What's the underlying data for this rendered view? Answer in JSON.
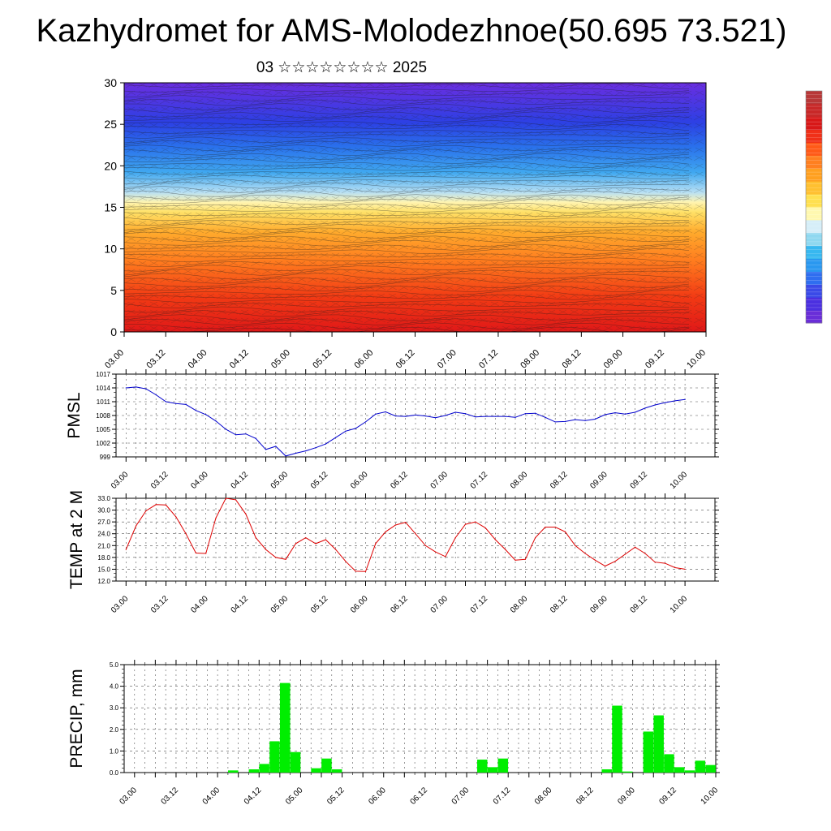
{
  "title": "Kazhydromet for AMS-Molodezhnoe(50.695 73.521)",
  "subtitle": "03 ☆☆☆☆☆☆☆☆ 2025",
  "time_labels": [
    "03.00",
    "03.12",
    "04.00",
    "04.12",
    "05.00",
    "05.12",
    "06.00",
    "06.12",
    "07.00",
    "07.12",
    "08.00",
    "08.12",
    "09.00",
    "09.12",
    "10.00"
  ],
  "colorbar": {
    "colors": [
      "#6a2ed8",
      "#4b30e0",
      "#3a4ae8",
      "#2f6ef0",
      "#2a98f0",
      "#38b8f0",
      "#8fd8f0",
      "#d6eef8",
      "#fff8b0",
      "#ffe050",
      "#ffc030",
      "#ffa020",
      "#ff8020",
      "#ff5a18",
      "#f03018",
      "#d81818",
      "#c82828",
      "#b83838"
    ]
  },
  "chart_data": [
    {
      "type": "heatmap",
      "name": "cross-section",
      "ylim": [
        0,
        30
      ],
      "yticks": [
        0,
        5,
        10,
        15,
        20,
        25,
        30
      ],
      "xlim": [
        0,
        14
      ],
      "description_bands": [
        {
          "y0": 0,
          "y1": 8,
          "color": "#e82818"
        },
        {
          "y0": 8,
          "y1": 12,
          "color": "#ff8a20"
        },
        {
          "y0": 12,
          "y1": 16,
          "color": "#ffd040"
        },
        {
          "y0": 16,
          "y1": 20,
          "color": "#5ab0f0"
        },
        {
          "y0": 20,
          "y1": 25,
          "color": "#2c62e8"
        },
        {
          "y0": 25,
          "y1": 30,
          "color": "#5a30dc"
        }
      ]
    },
    {
      "type": "line",
      "ylabel": "PMSL",
      "ylim": [
        999,
        1017
      ],
      "yticks": [
        999,
        1002,
        1005,
        1008,
        1011,
        1014,
        1017
      ],
      "xlim": [
        -0.25,
        14.75
      ],
      "color": "#0000cc",
      "x": [
        0,
        0.25,
        0.5,
        0.75,
        1,
        1.25,
        1.5,
        1.75,
        2,
        2.25,
        2.5,
        2.75,
        3,
        3.25,
        3.5,
        3.75,
        4,
        4.25,
        4.5,
        4.75,
        5,
        5.25,
        5.5,
        5.75,
        6,
        6.25,
        6.5,
        6.75,
        7,
        7.25,
        7.5,
        7.75,
        8,
        8.25,
        8.5,
        8.75,
        9,
        9.25,
        9.5,
        9.75,
        10,
        10.25,
        10.5,
        10.75,
        11,
        11.25,
        11.5,
        11.75,
        12,
        12.25,
        12.5,
        12.75,
        13,
        13.25,
        13.5,
        13.75,
        14
      ],
      "values": [
        1014.0,
        1014.2,
        1013.8,
        1012.5,
        1011.0,
        1010.6,
        1010.4,
        1009.1,
        1008.2,
        1006.8,
        1005.0,
        1003.8,
        1004.0,
        1003.0,
        1000.6,
        1001.3,
        999.2,
        999.8,
        1000.3,
        1001.0,
        1001.8,
        1003.2,
        1004.6,
        1005.2,
        1006.6,
        1008.3,
        1008.8,
        1007.9,
        1007.8,
        1008.1,
        1007.9,
        1007.5,
        1008.0,
        1008.7,
        1008.4,
        1007.7,
        1007.8,
        1007.8,
        1007.8,
        1007.6,
        1008.4,
        1008.5,
        1007.6,
        1006.6,
        1006.7,
        1007.1,
        1006.9,
        1007.2,
        1008.2,
        1008.6,
        1008.3,
        1008.7,
        1009.6,
        1010.3,
        1010.8,
        1011.2,
        1011.5
      ]
    },
    {
      "type": "line",
      "ylabel": "TEMP at 2 M",
      "ylim": [
        12,
        33
      ],
      "yticks": [
        12.0,
        15.0,
        18.0,
        21.0,
        24.0,
        27.0,
        30.0,
        33.0
      ],
      "xlim": [
        -0.25,
        14.75
      ],
      "color": "#dd0000",
      "x": [
        0,
        0.25,
        0.5,
        0.75,
        1,
        1.25,
        1.5,
        1.75,
        2,
        2.25,
        2.5,
        2.75,
        3,
        3.25,
        3.5,
        3.75,
        4,
        4.25,
        4.5,
        4.75,
        5,
        5.25,
        5.5,
        5.75,
        6,
        6.25,
        6.5,
        6.75,
        7,
        7.25,
        7.5,
        7.75,
        8,
        8.25,
        8.5,
        8.75,
        9,
        9.25,
        9.5,
        9.75,
        10,
        10.25,
        10.5,
        10.75,
        11,
        11.25,
        11.5,
        11.75,
        12,
        12.25,
        12.5,
        12.75,
        13,
        13.25,
        13.5,
        13.75,
        14
      ],
      "values": [
        20.0,
        26.0,
        29.8,
        31.4,
        31.3,
        28.3,
        24.0,
        19.1,
        19.0,
        28.0,
        33.0,
        32.6,
        29.0,
        23.0,
        20.0,
        18.0,
        17.5,
        21.5,
        23.0,
        21.5,
        22.5,
        20.0,
        17.0,
        14.5,
        14.4,
        21.5,
        24.5,
        26.2,
        26.9,
        24.0,
        21.0,
        19.4,
        18.2,
        23.0,
        26.4,
        27.0,
        25.5,
        22.5,
        20.0,
        17.3,
        17.5,
        23.0,
        25.7,
        25.7,
        24.5,
        21.0,
        19.0,
        17.3,
        15.8,
        17.0,
        18.8,
        20.6,
        19.0,
        16.8,
        16.5,
        15.4,
        15.0
      ]
    },
    {
      "type": "bar",
      "ylabel": "PRECIP, mm",
      "ylim": [
        0,
        5
      ],
      "yticks": [
        0.0,
        1.0,
        2.0,
        3.0,
        4.0,
        5.0
      ],
      "xlim": [
        -0.25,
        14
      ],
      "color": "#00ee00",
      "x": [
        2.375,
        2.625,
        2.875,
        3.125,
        3.375,
        3.625,
        3.875,
        4.125,
        4.375,
        4.625,
        4.875,
        5.125,
        8.375,
        8.625,
        8.875,
        11.375,
        11.625,
        11.875,
        12.125,
        12.375,
        12.625,
        12.875,
        13.125,
        13.375,
        13.625,
        13.875
      ],
      "values": [
        0.1,
        0.0,
        0.15,
        0.4,
        1.45,
        4.15,
        0.95,
        0.0,
        0.2,
        0.65,
        0.15,
        0.0,
        0.6,
        0.25,
        0.65,
        0.15,
        3.1,
        0.05,
        0.0,
        1.9,
        2.65,
        0.85,
        0.25,
        0.1,
        0.55,
        0.35
      ]
    }
  ]
}
